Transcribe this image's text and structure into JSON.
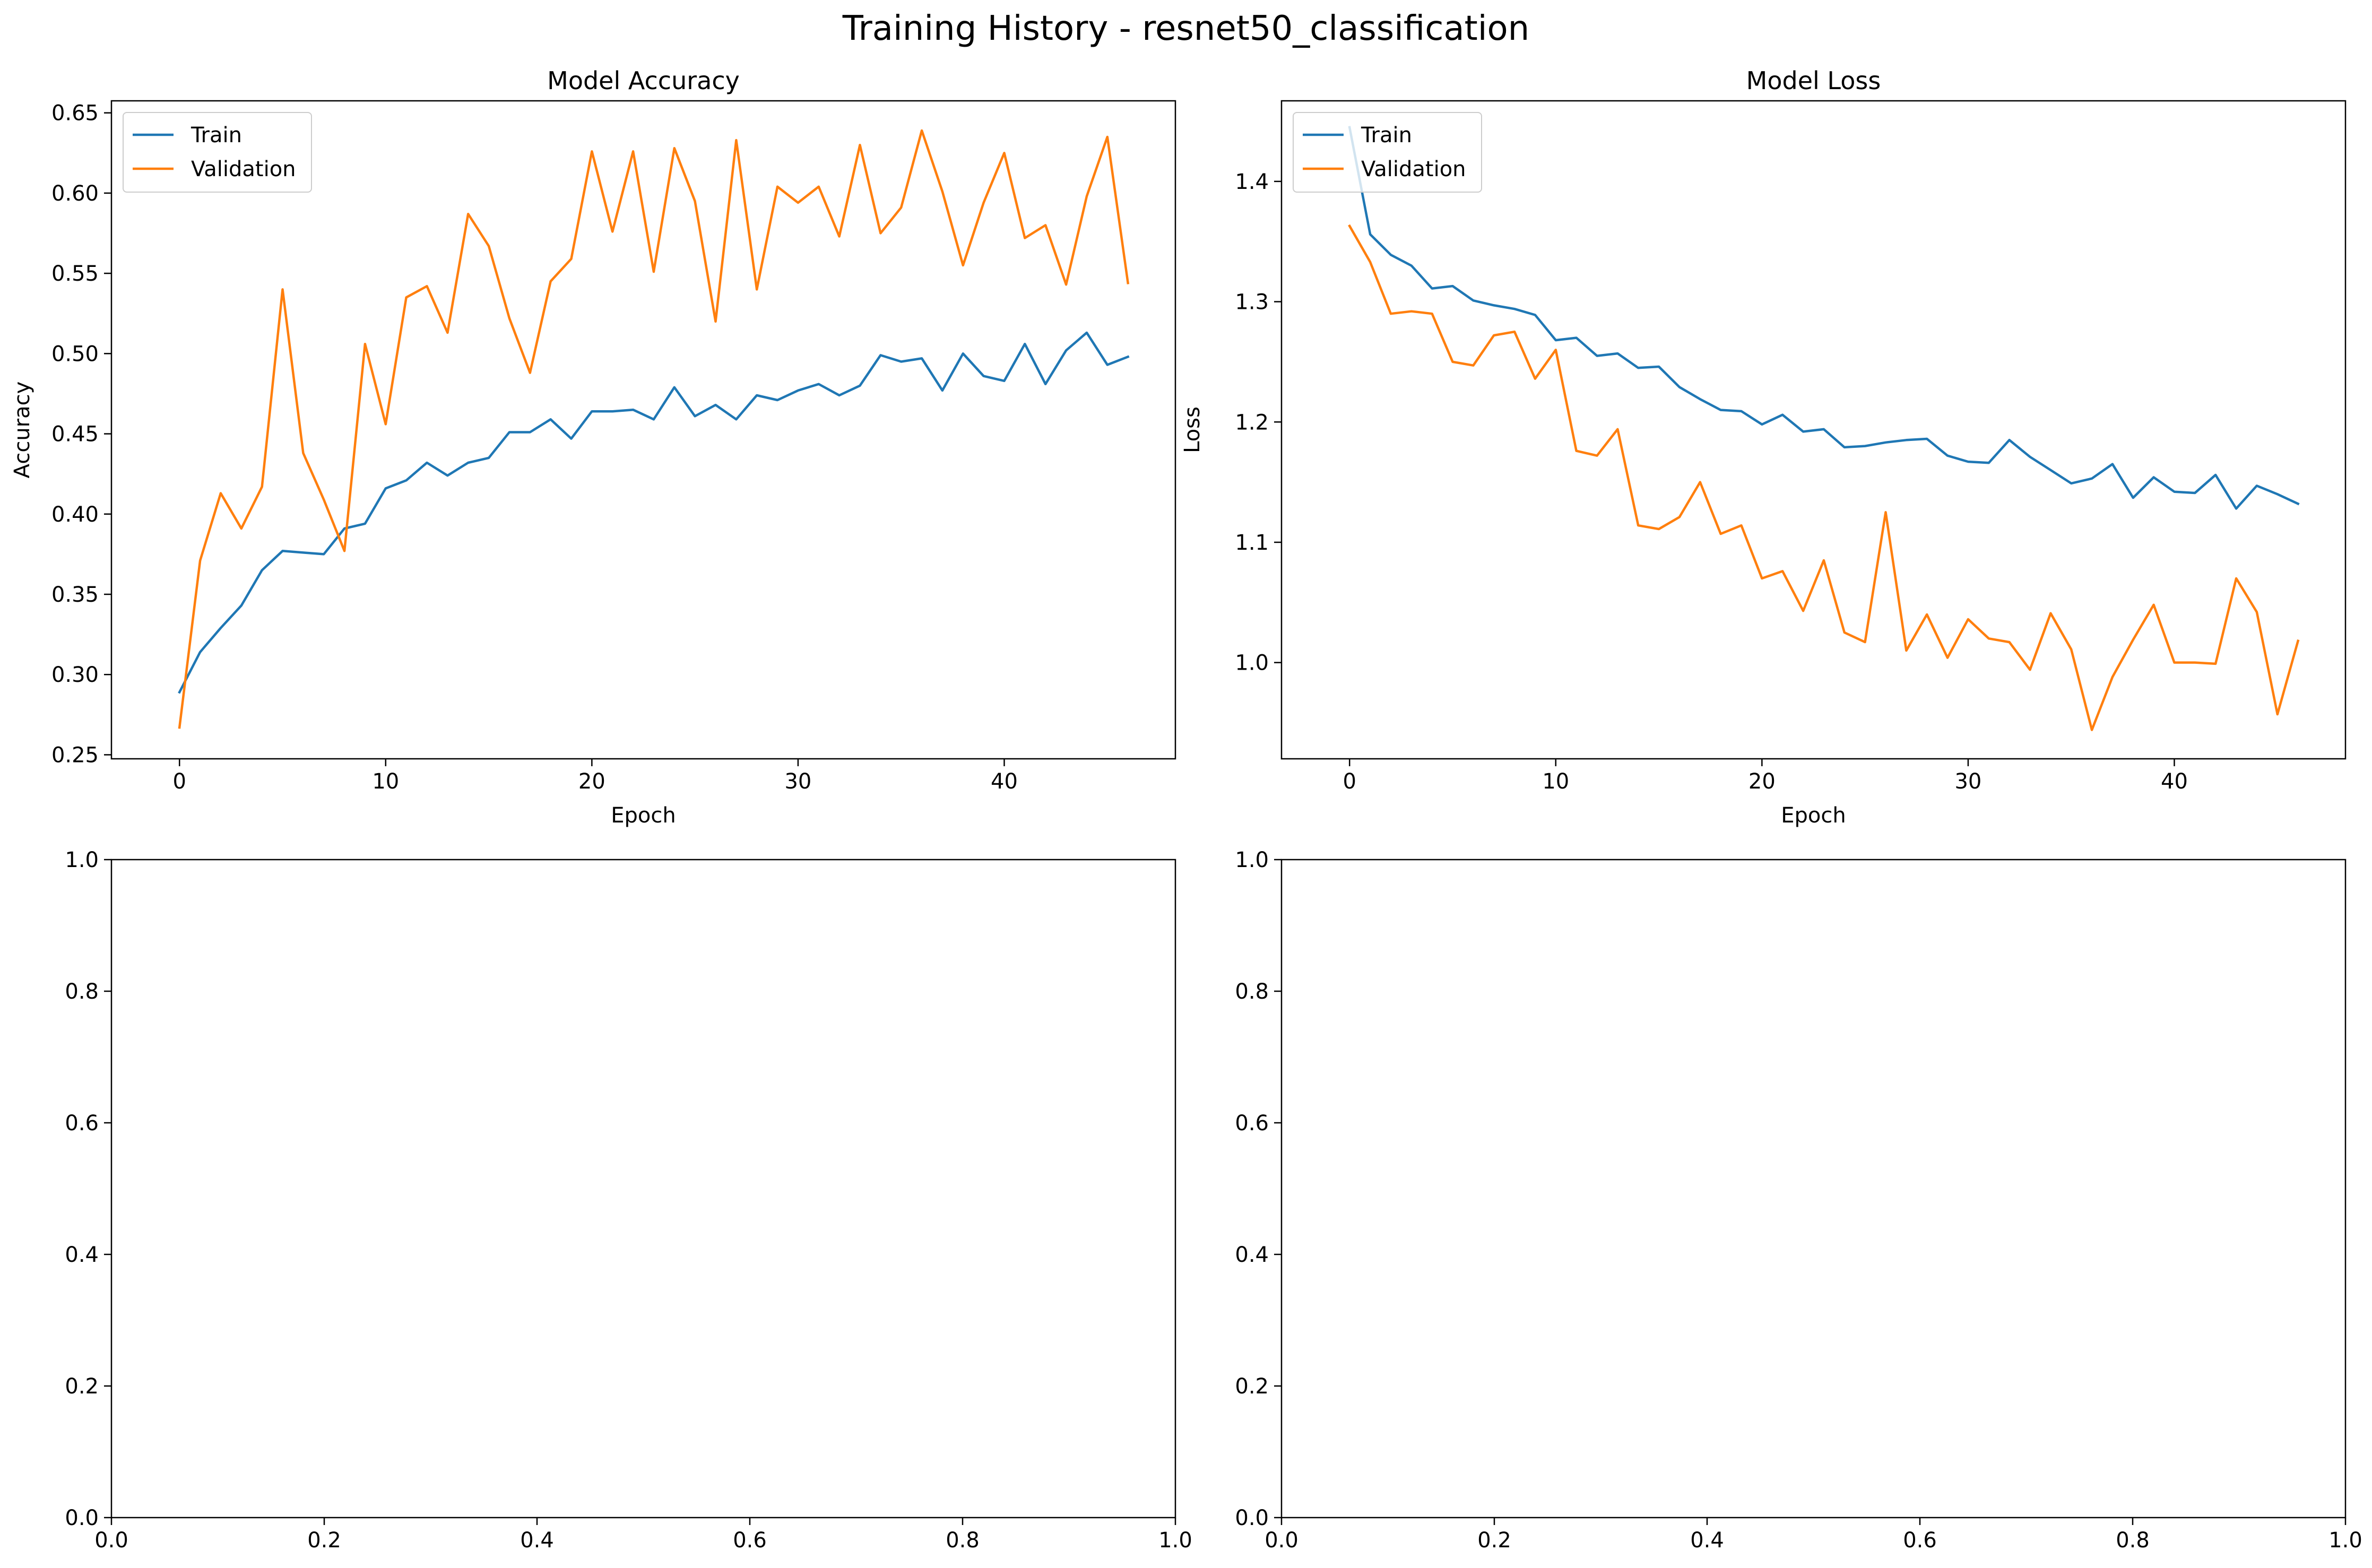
{
  "figure": {
    "title": "Training History - resnet50_classification"
  },
  "chart_data": [
    {
      "type": "line",
      "title": "Model Accuracy",
      "xlabel": "Epoch",
      "ylabel": "Accuracy",
      "xlim": [
        -3.3,
        48.3
      ],
      "ylim": [
        0.2475,
        0.6575
      ],
      "xticks": [
        0,
        10,
        20,
        30,
        40
      ],
      "xtick_labels": [
        "0",
        "10",
        "20",
        "30",
        "40"
      ],
      "yticks": [
        0.25,
        0.3,
        0.35,
        0.4,
        0.45,
        0.5,
        0.55,
        0.6,
        0.65
      ],
      "ytick_labels": [
        "0.25",
        "0.30",
        "0.35",
        "0.40",
        "0.45",
        "0.50",
        "0.55",
        "0.60",
        "0.65"
      ],
      "legend": "top-left",
      "grid": false,
      "x": [
        0,
        1,
        2,
        3,
        4,
        5,
        6,
        7,
        8,
        9,
        10,
        11,
        12,
        13,
        14,
        15,
        16,
        17,
        18,
        19,
        20,
        21,
        22,
        23,
        24,
        25,
        26,
        27,
        28,
        29,
        30,
        31,
        32,
        33,
        34,
        35,
        36,
        37,
        38,
        39,
        40,
        41,
        42,
        43,
        44,
        45,
        46
      ],
      "series": [
        {
          "name": "Train",
          "color": "#1f77b4",
          "values": [
            0.289,
            0.314,
            0.329,
            0.343,
            0.365,
            0.377,
            0.376,
            0.375,
            0.391,
            0.394,
            0.416,
            0.421,
            0.432,
            0.424,
            0.432,
            0.435,
            0.451,
            0.451,
            0.459,
            0.447,
            0.464,
            0.464,
            0.465,
            0.459,
            0.479,
            0.461,
            0.468,
            0.459,
            0.474,
            0.471,
            0.477,
            0.481,
            0.474,
            0.48,
            0.499,
            0.495,
            0.497,
            0.477,
            0.5,
            0.486,
            0.483,
            0.506,
            0.481,
            0.502,
            0.513,
            0.493,
            0.498
          ]
        },
        {
          "name": "Validation",
          "color": "#ff7f0e",
          "values": [
            0.267,
            0.371,
            0.413,
            0.391,
            0.417,
            0.54,
            0.438,
            0.409,
            0.377,
            0.506,
            0.456,
            0.535,
            0.542,
            0.513,
            0.587,
            0.567,
            0.522,
            0.488,
            0.545,
            0.559,
            0.626,
            0.576,
            0.626,
            0.551,
            0.628,
            0.595,
            0.52,
            0.633,
            0.54,
            0.604,
            0.594,
            0.604,
            0.573,
            0.63,
            0.575,
            0.591,
            0.639,
            0.601,
            0.555,
            0.594,
            0.625,
            0.572,
            0.58,
            0.543,
            0.598,
            0.635,
            0.544
          ]
        }
      ]
    },
    {
      "type": "line",
      "title": "Model Loss",
      "xlabel": "Epoch",
      "ylabel": "Loss",
      "xlim": [
        -3.3,
        48.3
      ],
      "ylim": [
        0.92,
        1.467
      ],
      "xticks": [
        0,
        10,
        20,
        30,
        40
      ],
      "xtick_labels": [
        "0",
        "10",
        "20",
        "30",
        "40"
      ],
      "yticks": [
        1.0,
        1.1,
        1.2,
        1.3,
        1.4
      ],
      "ytick_labels": [
        "1.0",
        "1.1",
        "1.2",
        "1.3",
        "1.4"
      ],
      "legend": "top-left",
      "grid": false,
      "x": [
        0,
        1,
        2,
        3,
        4,
        5,
        6,
        7,
        8,
        9,
        10,
        11,
        12,
        13,
        14,
        15,
        16,
        17,
        18,
        19,
        20,
        21,
        22,
        23,
        24,
        25,
        26,
        27,
        28,
        29,
        30,
        31,
        32,
        33,
        34,
        35,
        36,
        37,
        38,
        39,
        40,
        41,
        42,
        43,
        44,
        45,
        46
      ],
      "series": [
        {
          "name": "Train",
          "color": "#1f77b4",
          "values": [
            1.445,
            1.356,
            1.339,
            1.33,
            1.311,
            1.313,
            1.301,
            1.297,
            1.294,
            1.289,
            1.268,
            1.27,
            1.255,
            1.257,
            1.245,
            1.246,
            1.229,
            1.219,
            1.21,
            1.209,
            1.198,
            1.206,
            1.192,
            1.194,
            1.179,
            1.18,
            1.183,
            1.185,
            1.186,
            1.172,
            1.167,
            1.166,
            1.185,
            1.171,
            1.16,
            1.149,
            1.153,
            1.165,
            1.137,
            1.154,
            1.142,
            1.141,
            1.156,
            1.128,
            1.147,
            1.14,
            1.132
          ]
        },
        {
          "name": "Validation",
          "color": "#ff7f0e",
          "values": [
            1.363,
            1.333,
            1.29,
            1.292,
            1.29,
            1.25,
            1.247,
            1.272,
            1.275,
            1.236,
            1.26,
            1.176,
            1.172,
            1.194,
            1.114,
            1.111,
            1.121,
            1.15,
            1.107,
            1.114,
            1.07,
            1.076,
            1.043,
            1.085,
            1.025,
            1.017,
            1.125,
            1.01,
            1.04,
            1.004,
            1.036,
            1.02,
            1.017,
            0.994,
            1.041,
            1.011,
            0.944,
            0.988,
            1.019,
            1.048,
            1.0,
            1.0,
            0.999,
            1.07,
            1.042,
            0.957,
            1.018
          ]
        }
      ]
    },
    {
      "type": "line",
      "title": "",
      "xlabel": "",
      "ylabel": "",
      "xlim": [
        0,
        1
      ],
      "ylim": [
        0,
        1
      ],
      "xticks": [
        0,
        0.2,
        0.4,
        0.6,
        0.8,
        1.0
      ],
      "xtick_labels": [
        "0.0",
        "0.2",
        "0.4",
        "0.6",
        "0.8",
        "1.0"
      ],
      "yticks": [
        0,
        0.2,
        0.4,
        0.6,
        0.8,
        1.0
      ],
      "ytick_labels": [
        "0.0",
        "0.2",
        "0.4",
        "0.6",
        "0.8",
        "1.0"
      ],
      "grid": false,
      "series": []
    },
    {
      "type": "line",
      "title": "",
      "xlabel": "",
      "ylabel": "",
      "xlim": [
        0,
        1
      ],
      "ylim": [
        0,
        1
      ],
      "xticks": [
        0,
        0.2,
        0.4,
        0.6,
        0.8,
        1.0
      ],
      "xtick_labels": [
        "0.0",
        "0.2",
        "0.4",
        "0.6",
        "0.8",
        "1.0"
      ],
      "yticks": [
        0,
        0.2,
        0.4,
        0.6,
        0.8,
        1.0
      ],
      "ytick_labels": [
        "0.0",
        "0.2",
        "0.4",
        "0.6",
        "0.8",
        "1.0"
      ],
      "grid": false,
      "series": []
    }
  ]
}
